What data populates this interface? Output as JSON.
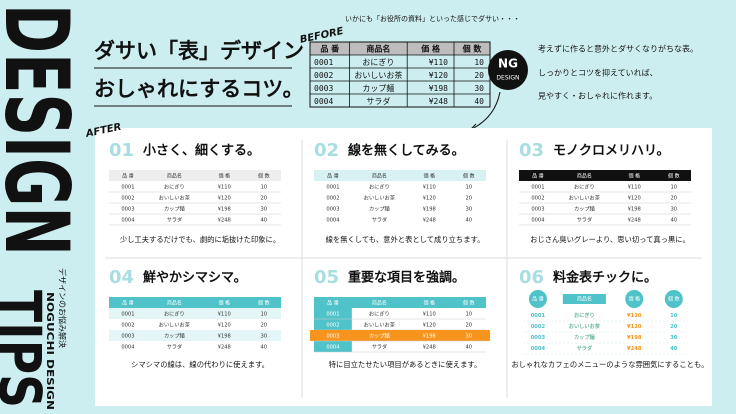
{
  "side": {
    "title_1": "DESIGN",
    "title_2": "TIPS",
    "sub_1": "デザインのお悩み解決",
    "sub_2": "NOGUCHI DESIGN"
  },
  "headline": {
    "line_1": "ダサい「表」デザイン",
    "line_2": "おしゃれにするコツ。"
  },
  "before": {
    "label": "BEFORE",
    "caption": "いかにも「お役所の資料」といった感じでダサい・・・",
    "badge_1": "NG",
    "badge_2": "DESIGN"
  },
  "table": {
    "header": [
      "品 番",
      "商品名",
      "価 格",
      "個 数"
    ],
    "rows": [
      [
        "0001",
        "おにぎり",
        "¥110",
        "10"
      ],
      [
        "0002",
        "おいしいお茶",
        "¥120",
        "20"
      ],
      [
        "0003",
        "カップ麺",
        "¥198",
        "30"
      ],
      [
        "0004",
        "サラダ",
        "¥248",
        "40"
      ]
    ]
  },
  "intro": [
    "考えずに作ると意外とダサくなりがちな表。",
    "しっかりとコツを抑えていれば、",
    "見やすく・おしゃれに作れます。"
  ],
  "after": {
    "label": "AFTER"
  },
  "tips": [
    {
      "number": "01",
      "title": "小さく、細くする。",
      "caption": "少し工夫するだけでも、劇的に垢抜けた印象に。"
    },
    {
      "number": "02",
      "title": "線を無くしてみる。",
      "caption": "線を無くしても、意外と表として成り立ちます。"
    },
    {
      "number": "03",
      "title": "モノクロメリハリ。",
      "caption": "おじさん臭いグレーより、思い切って真っ黒に。"
    },
    {
      "number": "04",
      "title": "鮮やかシマシマ。",
      "caption": "シマシマの線は、線の代わりに使えます。"
    },
    {
      "number": "05",
      "title": "重要な項目を強調。",
      "caption": "特に目立たせたい項目があるときに使えます。"
    },
    {
      "number": "06",
      "title": "料金表チックに。",
      "caption": "おしゃれなカフェのメニューのような雰囲気にすることも。"
    }
  ]
}
